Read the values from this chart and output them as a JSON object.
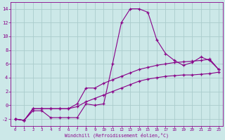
{
  "xlabel": "Windchill (Refroidissement éolien,°C)",
  "x": [
    0,
    1,
    2,
    3,
    4,
    5,
    6,
    7,
    8,
    9,
    10,
    11,
    12,
    13,
    14,
    15,
    16,
    17,
    18,
    19,
    20,
    21,
    22,
    23
  ],
  "line1": [
    -2,
    -2.2,
    -0.8,
    -0.8,
    -1.8,
    -1.8,
    -1.8,
    -1.8,
    0.2,
    0.0,
    0.2,
    6.0,
    12,
    14,
    14,
    13.5,
    9.5,
    7.5,
    6.5,
    5.8,
    6.2,
    7.0,
    6.5,
    5.2
  ],
  "line2": [
    -2,
    -2.2,
    -0.5,
    -0.5,
    -0.5,
    -0.5,
    -0.5,
    0.2,
    2.5,
    2.5,
    3.2,
    3.7,
    4.2,
    4.7,
    5.2,
    5.5,
    5.8,
    6.0,
    6.2,
    6.3,
    6.4,
    6.5,
    6.7,
    5.2
  ],
  "line3": [
    -2,
    -2.2,
    -0.5,
    -0.5,
    -0.5,
    -0.5,
    -0.5,
    -0.2,
    0.5,
    1.0,
    1.5,
    2.0,
    2.5,
    3.0,
    3.5,
    3.8,
    4.0,
    4.2,
    4.3,
    4.4,
    4.4,
    4.5,
    4.6,
    4.8
  ],
  "line_color": "#880088",
  "bg_color": "#cce8e8",
  "grid_color": "#aacccc",
  "ylim": [
    -3,
    15
  ],
  "xlim": [
    -0.5,
    23.5
  ],
  "yticks": [
    -2,
    0,
    2,
    4,
    6,
    8,
    10,
    12,
    14
  ],
  "xticks": [
    0,
    1,
    2,
    3,
    4,
    5,
    6,
    7,
    8,
    9,
    10,
    11,
    12,
    13,
    14,
    15,
    16,
    17,
    18,
    19,
    20,
    21,
    22,
    23
  ]
}
